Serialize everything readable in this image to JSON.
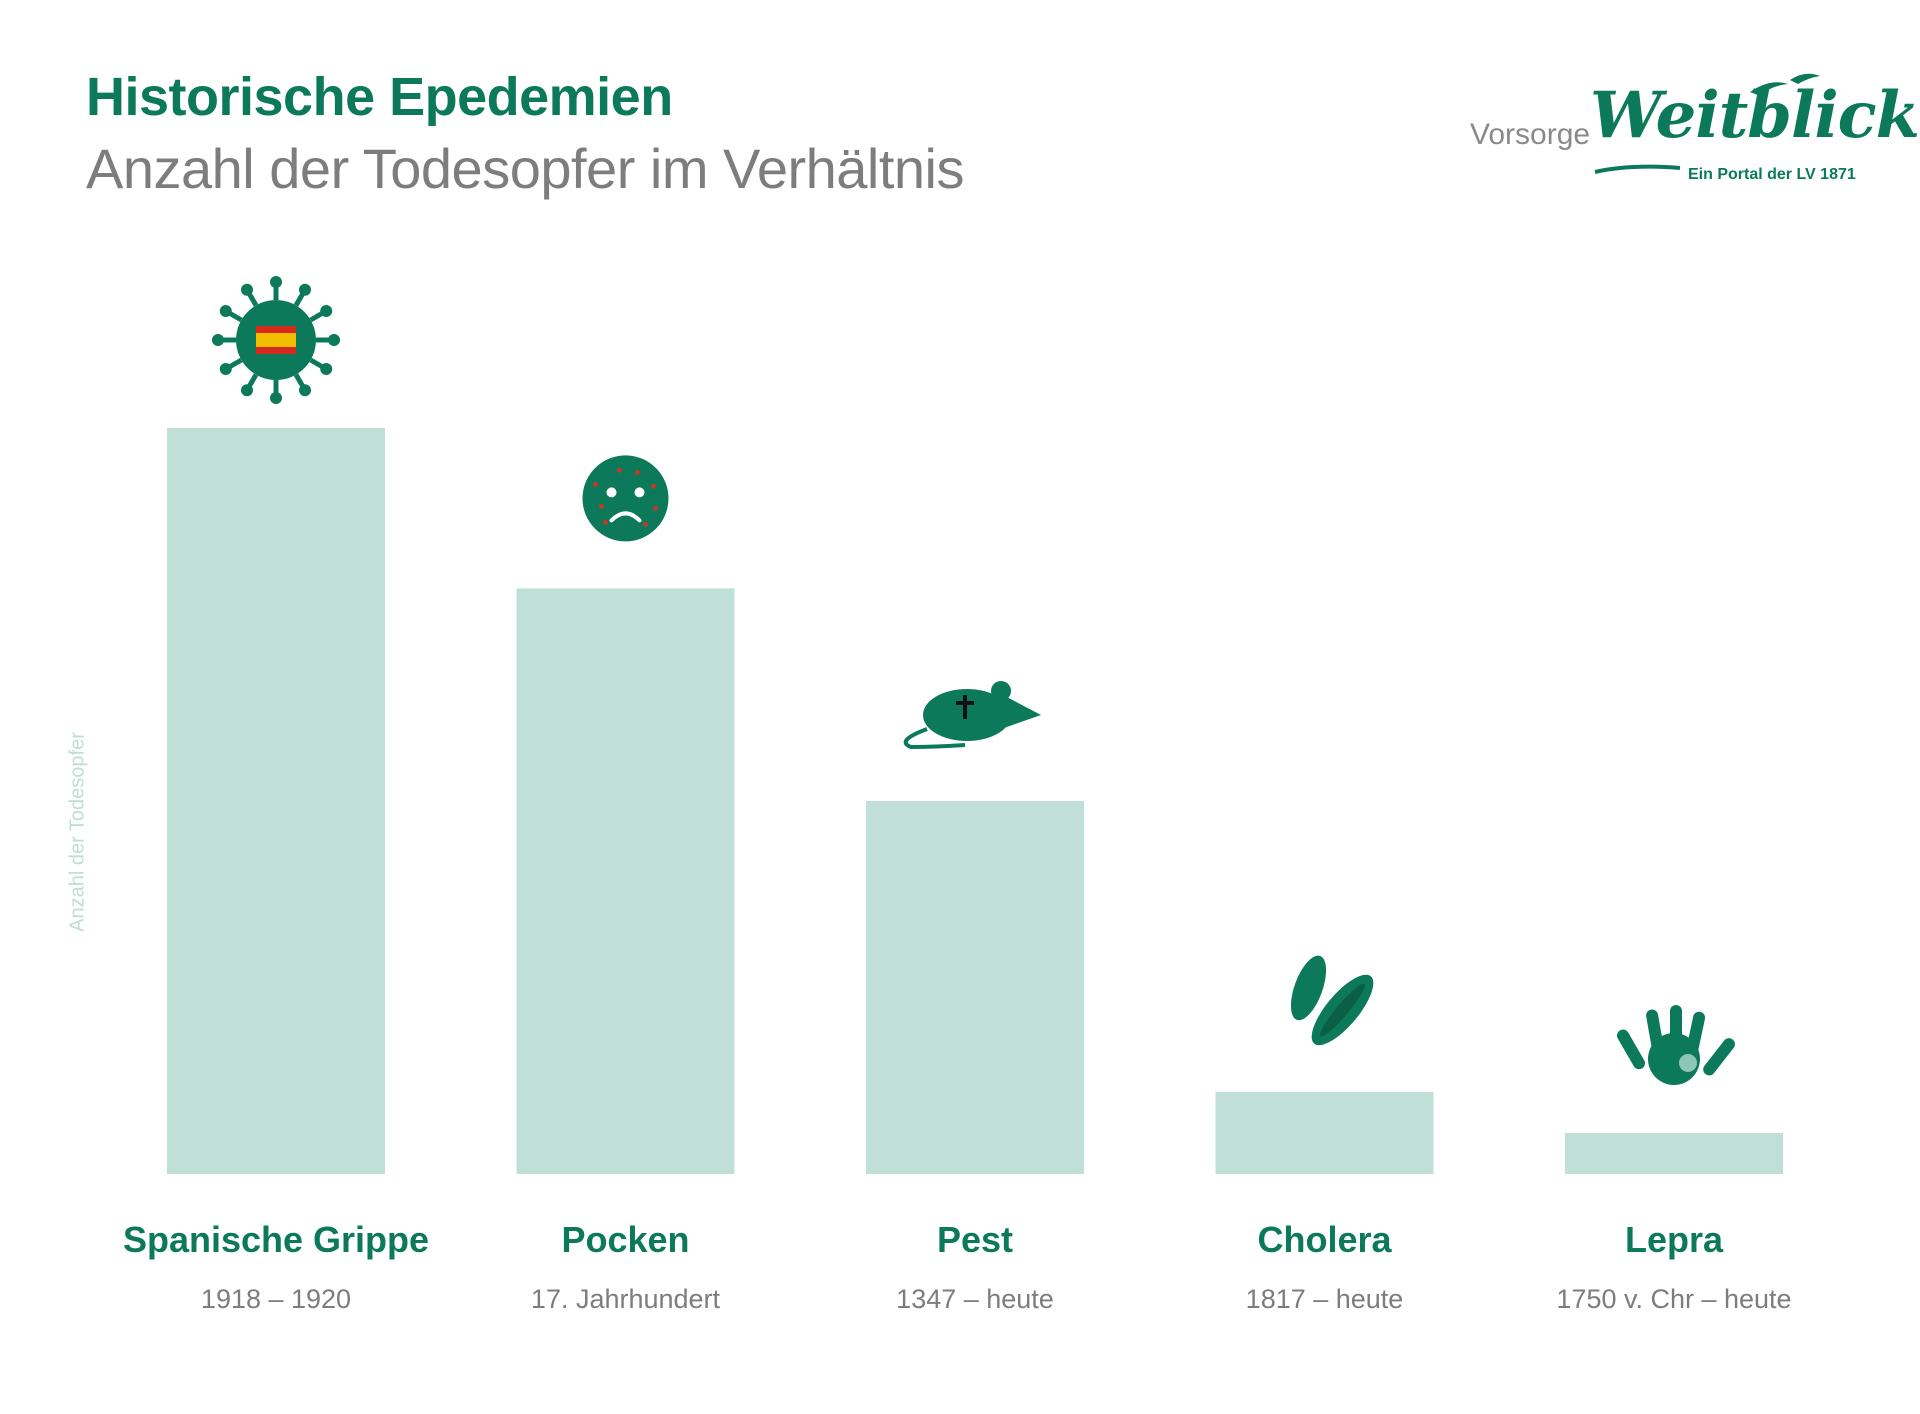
{
  "header": {
    "title": "Historische Epedemien",
    "subtitle": "Anzahl der Todesopfer im Verhältnis"
  },
  "logo": {
    "prefix": "Vorsorge",
    "name": "Weitblick",
    "tagline": "Ein Portal der LV 1871"
  },
  "colors": {
    "accent": "#0c7a5a",
    "bar": "#c0e0d7",
    "muted_text": "#7d7d7d"
  },
  "chart_data": {
    "type": "bar",
    "ylabel": "Anzahl der Todesopfer",
    "xlabel": "",
    "grid": false,
    "ylim": [
      0,
      100
    ],
    "categories": [
      "Spanische Grippe",
      "Pocken",
      "Pest",
      "Cholera",
      "Lepra"
    ],
    "periods": [
      "1918 – 1920",
      "17. Jahrhundert",
      "1347 – heute",
      "1817 – heute",
      "1750 v. Chr – heute"
    ],
    "icons": [
      "virus-icon",
      "sad-face-icon",
      "rat-icon",
      "bacteria-icon",
      "hand-icon"
    ],
    "values": [
      100,
      78.5,
      50,
      11,
      5.5
    ]
  }
}
